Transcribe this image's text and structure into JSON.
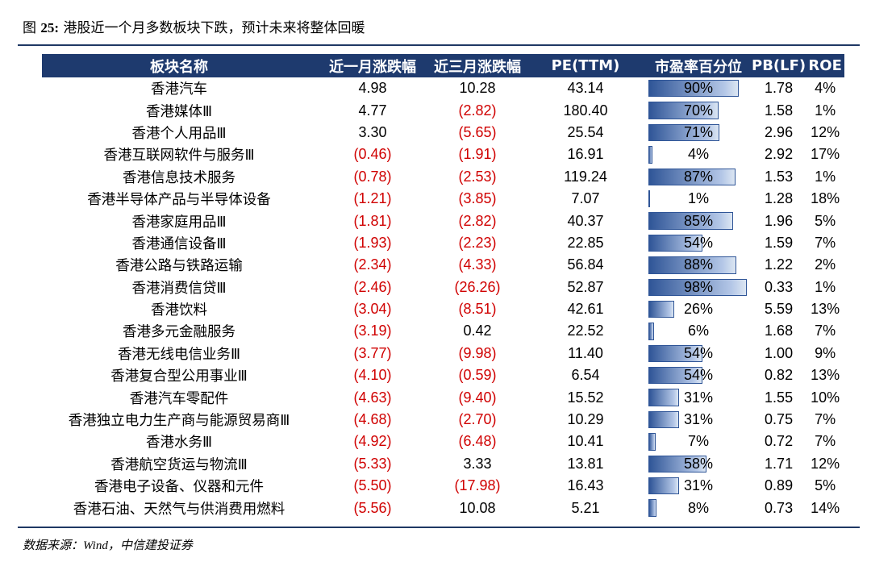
{
  "title_prefix": "图",
  "title_fig": "25:",
  "title_text": "港股近一个月多数板块下跌，预计未来将整体回暖",
  "headers": [
    "板块名称",
    "近一月涨跌幅",
    "近三月涨跌幅",
    "PE(TTM)",
    "市盈率百分位",
    "PB(LF)",
    "ROE"
  ],
  "rows": [
    {
      "name": "香港汽车",
      "m1": "4.98",
      "m3": "10.28",
      "pe": "43.14",
      "pct": "90%",
      "pb": "1.78",
      "roe": "4%"
    },
    {
      "name": "香港媒体Ⅲ",
      "m1": "4.77",
      "m3": "(2.82)",
      "pe": "180.40",
      "pct": "70%",
      "pb": "1.58",
      "roe": "1%"
    },
    {
      "name": "香港个人用品Ⅲ",
      "m1": "3.30",
      "m3": "(5.65)",
      "pe": "25.54",
      "pct": "71%",
      "pb": "2.96",
      "roe": "12%"
    },
    {
      "name": "香港互联网软件与服务Ⅲ",
      "m1": "(0.46)",
      "m3": "(1.91)",
      "pe": "16.91",
      "pct": "4%",
      "pb": "2.92",
      "roe": "17%"
    },
    {
      "name": "香港信息技术服务",
      "m1": "(0.78)",
      "m3": "(2.53)",
      "pe": "119.24",
      "pct": "87%",
      "pb": "1.53",
      "roe": "1%"
    },
    {
      "name": "香港半导体产品与半导体设备",
      "m1": "(1.21)",
      "m3": "(3.85)",
      "pe": "7.07",
      "pct": "1%",
      "pb": "1.28",
      "roe": "18%"
    },
    {
      "name": "香港家庭用品Ⅲ",
      "m1": "(1.81)",
      "m3": "(2.82)",
      "pe": "40.37",
      "pct": "85%",
      "pb": "1.96",
      "roe": "5%"
    },
    {
      "name": "香港通信设备Ⅲ",
      "m1": "(1.93)",
      "m3": "(2.23)",
      "pe": "22.85",
      "pct": "54%",
      "pb": "1.59",
      "roe": "7%"
    },
    {
      "name": "香港公路与铁路运输",
      "m1": "(2.34)",
      "m3": "(4.33)",
      "pe": "56.84",
      "pct": "88%",
      "pb": "1.22",
      "roe": "2%"
    },
    {
      "name": "香港消费信贷Ⅲ",
      "m1": "(2.46)",
      "m3": "(26.26)",
      "pe": "52.87",
      "pct": "98%",
      "pb": "0.33",
      "roe": "1%"
    },
    {
      "name": "香港饮料",
      "m1": "(3.04)",
      "m3": "(8.51)",
      "pe": "42.61",
      "pct": "26%",
      "pb": "5.59",
      "roe": "13%"
    },
    {
      "name": "香港多元金融服务",
      "m1": "(3.19)",
      "m3": "0.42",
      "pe": "22.52",
      "pct": "6%",
      "pb": "1.68",
      "roe": "7%"
    },
    {
      "name": "香港无线电信业务Ⅲ",
      "m1": "(3.77)",
      "m3": "(9.98)",
      "pe": "11.40",
      "pct": "54%",
      "pb": "1.00",
      "roe": "9%"
    },
    {
      "name": "香港复合型公用事业Ⅲ",
      "m1": "(4.10)",
      "m3": "(0.59)",
      "pe": "6.54",
      "pct": "54%",
      "pb": "0.82",
      "roe": "13%"
    },
    {
      "name": "香港汽车零配件",
      "m1": "(4.63)",
      "m3": "(9.40)",
      "pe": "15.52",
      "pct": "31%",
      "pb": "1.55",
      "roe": "10%"
    },
    {
      "name": "香港独立电力生产商与能源贸易商Ⅲ",
      "m1": "(4.68)",
      "m3": "(2.70)",
      "pe": "10.29",
      "pct": "31%",
      "pb": "0.75",
      "roe": "7%"
    },
    {
      "name": "香港水务Ⅲ",
      "m1": "(4.92)",
      "m3": "(6.48)",
      "pe": "10.41",
      "pct": "7%",
      "pb": "0.72",
      "roe": "7%"
    },
    {
      "name": "香港航空货运与物流Ⅲ",
      "m1": "(5.33)",
      "m3": "3.33",
      "pe": "13.81",
      "pct": "58%",
      "pb": "1.71",
      "roe": "12%"
    },
    {
      "name": "香港电子设备、仪器和元件",
      "m1": "(5.50)",
      "m3": "(17.98)",
      "pe": "16.43",
      "pct": "31%",
      "pb": "0.89",
      "roe": "5%"
    },
    {
      "name": "香港石油、天然气与供消费用燃料",
      "m1": "(5.56)",
      "m3": "10.08",
      "pe": "5.21",
      "pct": "8%",
      "pb": "0.73",
      "roe": "14%"
    }
  ],
  "source": "数据来源：Wind，中信建投证券",
  "colors": {
    "header_bg": "#1e3a6e",
    "negative": "#d00000",
    "bar": "#2f5597"
  }
}
